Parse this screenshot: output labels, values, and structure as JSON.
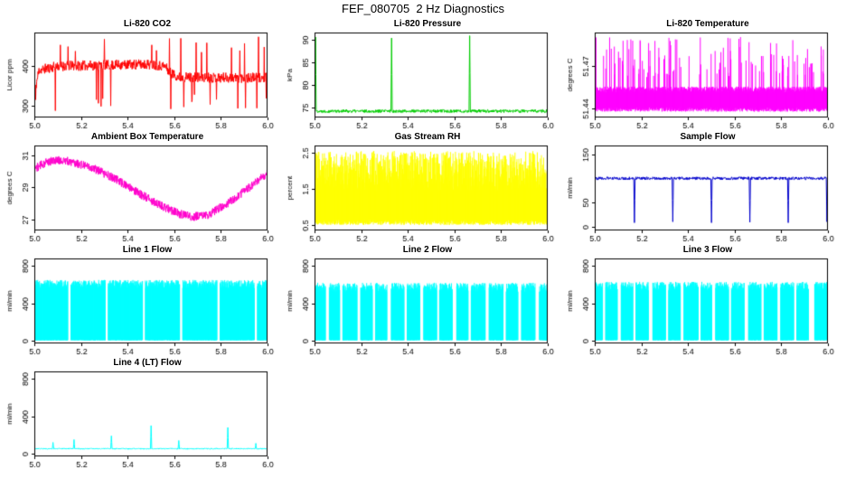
{
  "page": {
    "title": "FEF_080705  2 Hz Diagnostics"
  },
  "chart_data": {
    "note": "ten 2 Hz diagnostic time-series panels, x axis is decimal hour 5.0-6.0 on all panels",
    "panels": "see plots"
  },
  "plots": [
    {
      "title": "Li-820 CO2",
      "ylabel": "Licor ppm",
      "color": "#ff0000",
      "xlim": [
        5.0,
        6.0
      ],
      "xticks": [
        5.0,
        5.2,
        5.4,
        5.6,
        5.8,
        6.0
      ],
      "xtick_labels": [
        "5.0",
        "5.2",
        "5.4",
        "5.6",
        "5.8",
        "6.0"
      ],
      "ylim": [
        270,
        485
      ],
      "yticks": [
        300,
        400
      ],
      "ytick_labels": [
        "300",
        "400"
      ],
      "series": {
        "kind": "line",
        "seed": 11,
        "n": 700,
        "noise": 13,
        "base": [
          [
            5.0,
            330
          ],
          [
            5.02,
            390
          ],
          [
            5.1,
            400
          ],
          [
            5.5,
            405
          ],
          [
            5.56,
            400
          ],
          [
            5.58,
            385
          ],
          [
            5.62,
            372
          ],
          [
            6.0,
            370
          ]
        ],
        "rand_spikes": [
          {
            "count": 20,
            "min": 285,
            "max": 330
          },
          {
            "count": 16,
            "min": 435,
            "max": 475
          }
        ],
        "spikes": []
      }
    },
    {
      "title": "Li-820 Pressure",
      "ylabel": "kPa",
      "color": "#00cc00",
      "xlim": [
        5.0,
        6.0
      ],
      "xticks": [
        5.0,
        5.2,
        5.4,
        5.6,
        5.8,
        6.0
      ],
      "xtick_labels": [
        "5.0",
        "5.2",
        "5.4",
        "5.6",
        "5.8",
        "6.0"
      ],
      "ylim": [
        72.8,
        91.5
      ],
      "yticks": [
        75,
        80,
        85,
        90
      ],
      "ytick_labels": [
        "75",
        "80",
        "85",
        "90"
      ],
      "series": {
        "kind": "line",
        "seed": 22,
        "n": 700,
        "noise": 0.35,
        "base": [
          [
            5.0,
            74.2
          ],
          [
            6.0,
            74.2
          ]
        ],
        "rand_spikes": [],
        "spikes": [
          {
            "x": 5.005,
            "y": 90.5
          },
          {
            "x": 5.33,
            "y": 90.3
          },
          {
            "x": 5.665,
            "y": 90.8
          }
        ]
      }
    },
    {
      "title": "Li-820 Temperature",
      "ylabel": "degrees C",
      "color": "#ff00ff",
      "xlim": [
        5.0,
        6.0
      ],
      "xticks": [
        5.0,
        5.2,
        5.4,
        5.6,
        5.8,
        6.0
      ],
      "xtick_labels": [
        "5.0",
        "5.2",
        "5.4",
        "5.6",
        "5.8",
        "6.0"
      ],
      "ylim": [
        51.434,
        51.493
      ],
      "yticks": [
        51.44,
        51.47
      ],
      "ytick_labels": [
        "51.44",
        "51.47"
      ],
      "series": {
        "kind": "band",
        "seed": 33,
        "n": 800,
        "ymin": 51.438,
        "ymax": 51.4555,
        "jitter_bot": 0.003,
        "jitter_top": 0.004,
        "gaps": [],
        "spike_count": 120,
        "spike_from": 51.452,
        "spike_min": 51.462,
        "spike_max": 51.49
      }
    },
    {
      "title": "Ambient Box Temperature",
      "ylabel": "degrees C",
      "color": "#ff00cc",
      "xlim": [
        5.0,
        6.0
      ],
      "xticks": [
        5.0,
        5.2,
        5.4,
        5.6,
        5.8,
        6.0
      ],
      "xtick_labels": [
        "5.0",
        "5.2",
        "5.4",
        "5.6",
        "5.8",
        "6.0"
      ],
      "ylim": [
        26.3,
        31.6
      ],
      "yticks": [
        27,
        29,
        31
      ],
      "ytick_labels": [
        "27",
        "29",
        "31"
      ],
      "series": {
        "kind": "line",
        "seed": 44,
        "n": 900,
        "noise": 0.27,
        "base": [
          [
            5.0,
            30.15
          ],
          [
            5.05,
            30.55
          ],
          [
            5.1,
            30.7
          ],
          [
            5.15,
            30.6
          ],
          [
            5.25,
            30.2
          ],
          [
            5.35,
            29.5
          ],
          [
            5.45,
            28.6
          ],
          [
            5.55,
            27.8
          ],
          [
            5.62,
            27.35
          ],
          [
            5.68,
            27.15
          ],
          [
            5.75,
            27.3
          ],
          [
            5.85,
            28.2
          ],
          [
            5.95,
            29.3
          ],
          [
            6.0,
            29.85
          ]
        ],
        "rand_spikes": [],
        "spikes": []
      }
    },
    {
      "title": "Gas Stream RH",
      "ylabel": "percent",
      "color": "#ffff00",
      "xlim": [
        5.0,
        6.0
      ],
      "xticks": [
        5.0,
        5.2,
        5.4,
        5.6,
        5.8,
        6.0
      ],
      "xtick_labels": [
        "5.0",
        "5.2",
        "5.4",
        "5.6",
        "5.8",
        "6.0"
      ],
      "ylim": [
        0.35,
        2.7
      ],
      "yticks": [
        0.5,
        1.5,
        2.5
      ],
      "ytick_labels": [
        "0.5",
        "1.5",
        "2.5"
      ],
      "series": {
        "kind": "band",
        "seed": 55,
        "n": 850,
        "ymin": 0.5,
        "ymax": 2.55,
        "jitter_bot": 0.15,
        "jitter_top": 1.1,
        "gaps": [],
        "spike_count": 0,
        "spike_from": 0,
        "spike_min": 0,
        "spike_max": 0
      }
    },
    {
      "title": "Sample Flow",
      "ylabel": "ml/min",
      "color": "#0000cc",
      "xlim": [
        5.0,
        6.0
      ],
      "xticks": [
        5.0,
        5.2,
        5.4,
        5.6,
        5.8,
        6.0
      ],
      "xtick_labels": [
        "5.0",
        "5.2",
        "5.4",
        "5.6",
        "5.8",
        "6.0"
      ],
      "ylim": [
        -8,
        168
      ],
      "yticks": [
        0,
        50,
        150
      ],
      "ytick_labels": [
        "0",
        "50",
        "150"
      ],
      "series": {
        "kind": "line",
        "seed": 66,
        "n": 700,
        "noise": 3,
        "base": [
          [
            5.0,
            100
          ],
          [
            6.0,
            100
          ]
        ],
        "rand_spikes": [],
        "spikes": [
          {
            "x": 5.17,
            "y": 8
          },
          {
            "x": 5.335,
            "y": 10
          },
          {
            "x": 5.5,
            "y": 8
          },
          {
            "x": 5.665,
            "y": 9
          },
          {
            "x": 5.83,
            "y": 8
          },
          {
            "x": 5.995,
            "y": 10
          }
        ]
      }
    },
    {
      "title": "Line 1 Flow",
      "ylabel": "ml/min",
      "color": "#00ffff",
      "xlim": [
        5.0,
        6.0
      ],
      "xticks": [
        5.0,
        5.2,
        5.4,
        5.6,
        5.8,
        6.0
      ],
      "xtick_labels": [
        "5.0",
        "5.2",
        "5.4",
        "5.6",
        "5.8",
        "6.0"
      ],
      "ylim": [
        -30,
        880
      ],
      "yticks": [
        0,
        400,
        800
      ],
      "ytick_labels": [
        "0",
        "400",
        "800"
      ],
      "series": {
        "kind": "band",
        "seed": 77,
        "n": 900,
        "ymin": 2,
        "ymax": 650,
        "jitter_bot": 6,
        "jitter_top": 90,
        "gaps": [
          [
            5.15,
            0.012
          ],
          [
            5.31,
            0.012
          ],
          [
            5.47,
            0.012
          ],
          [
            5.63,
            0.012
          ],
          [
            5.79,
            0.012
          ],
          [
            5.95,
            0.012
          ]
        ],
        "spike_count": 0,
        "spike_from": 0,
        "spike_min": 0,
        "spike_max": 0
      }
    },
    {
      "title": "Line 2 Flow",
      "ylabel": "ml/min",
      "color": "#00ffff",
      "xlim": [
        5.0,
        6.0
      ],
      "xticks": [
        5.0,
        5.2,
        5.4,
        5.6,
        5.8,
        6.0
      ],
      "xtick_labels": [
        "5.0",
        "5.2",
        "5.4",
        "5.6",
        "5.8",
        "6.0"
      ],
      "ylim": [
        -30,
        880
      ],
      "yticks": [
        0,
        400,
        800
      ],
      "ytick_labels": [
        "0",
        "400",
        "800"
      ],
      "series": {
        "kind": "band",
        "seed": 88,
        "n": 900,
        "ymin": 2,
        "ymax": 620,
        "jitter_bot": 6,
        "jitter_top": 100,
        "gaps": [
          [
            5.055,
            0.015
          ],
          [
            5.115,
            0.012
          ],
          [
            5.19,
            0.015
          ],
          [
            5.255,
            0.012
          ],
          [
            5.32,
            0.018
          ],
          [
            5.39,
            0.012
          ],
          [
            5.46,
            0.015
          ],
          [
            5.53,
            0.012
          ],
          [
            5.6,
            0.018
          ],
          [
            5.665,
            0.012
          ],
          [
            5.74,
            0.015
          ],
          [
            5.815,
            0.012
          ],
          [
            5.88,
            0.015
          ],
          [
            5.955,
            0.018
          ]
        ],
        "spike_count": 0,
        "spike_from": 0,
        "spike_min": 0,
        "spike_max": 0
      }
    },
    {
      "title": "Line 3 Flow",
      "ylabel": "ml/min",
      "color": "#00ffff",
      "xlim": [
        5.0,
        6.0
      ],
      "xticks": [
        5.0,
        5.2,
        5.4,
        5.6,
        5.8,
        6.0
      ],
      "xtick_labels": [
        "5.0",
        "5.2",
        "5.4",
        "5.6",
        "5.8",
        "6.0"
      ],
      "ylim": [
        -30,
        880
      ],
      "yticks": [
        0,
        400,
        800
      ],
      "ytick_labels": [
        "0",
        "400",
        "800"
      ],
      "series": {
        "kind": "band",
        "seed": 99,
        "n": 900,
        "ymin": 2,
        "ymax": 630,
        "jitter_bot": 6,
        "jitter_top": 95,
        "gaps": [
          [
            5.04,
            0.012
          ],
          [
            5.105,
            0.015
          ],
          [
            5.17,
            0.012
          ],
          [
            5.24,
            0.018
          ],
          [
            5.31,
            0.012
          ],
          [
            5.375,
            0.015
          ],
          [
            5.45,
            0.012
          ],
          [
            5.51,
            0.015
          ],
          [
            5.58,
            0.012
          ],
          [
            5.65,
            0.018
          ],
          [
            5.72,
            0.012
          ],
          [
            5.79,
            0.015
          ],
          [
            5.86,
            0.012
          ],
          [
            5.93,
            0.025
          ]
        ],
        "spike_count": 0,
        "spike_from": 0,
        "spike_min": 0,
        "spike_max": 0
      }
    },
    {
      "title": "Line 4 (LT) Flow",
      "ylabel": "ml/min",
      "color": "#00ffff",
      "xlim": [
        5.0,
        6.0
      ],
      "xticks": [
        5.0,
        5.2,
        5.4,
        5.6,
        5.8,
        6.0
      ],
      "xtick_labels": [
        "5.0",
        "5.2",
        "5.4",
        "5.6",
        "5.8",
        "6.0"
      ],
      "ylim": [
        -30,
        880
      ],
      "yticks": [
        0,
        400,
        800
      ],
      "ytick_labels": [
        "0",
        "400",
        "800"
      ],
      "series": {
        "kind": "line",
        "seed": 110,
        "n": 700,
        "noise": 6,
        "base": [
          [
            5.0,
            52
          ],
          [
            6.0,
            52
          ]
        ],
        "rand_spikes": [],
        "spikes": [
          {
            "x": 5.08,
            "y": 120
          },
          {
            "x": 5.17,
            "y": 150
          },
          {
            "x": 5.33,
            "y": 190
          },
          {
            "x": 5.5,
            "y": 300
          },
          {
            "x": 5.62,
            "y": 140
          },
          {
            "x": 5.83,
            "y": 280
          },
          {
            "x": 5.95,
            "y": 110
          }
        ]
      }
    }
  ]
}
